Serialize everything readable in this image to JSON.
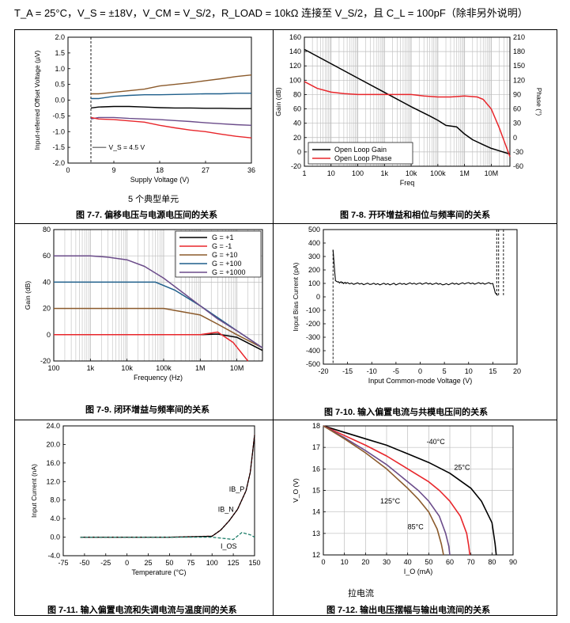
{
  "conditions": "T_A = 25°C，V_S = ±18V，V_CM = V_S/2，R_LOAD = 10kΩ 连接至 V_S/2，且 C_L = 100pF（除非另外说明）",
  "fig77": {
    "caption": "图 7-7. 偏移电压与电源电压间的关系",
    "subnote": "5 个典型单元",
    "chart_data": {
      "type": "line",
      "xlabel": "Supply Voltage (V)",
      "ylabel": "Input-referred Offset Voltage (µV)",
      "xlim": [
        0,
        36
      ],
      "ylim": [
        -2.0,
        2.0
      ],
      "xticks": [
        "0",
        "9",
        "18",
        "27",
        "36"
      ],
      "yticks": [
        "2.0",
        "1.5",
        "1.0",
        "0.5",
        "0.0",
        "-0.5",
        "-1.0",
        "-1.5",
        "-2.0"
      ],
      "annotation": "V_S = 4.5 V",
      "x": [
        4.5,
        6,
        9,
        12,
        15,
        18,
        21,
        24,
        27,
        30,
        33,
        36
      ],
      "series": [
        {
          "color": "#8B5A2B",
          "values": [
            0.2,
            0.2,
            0.25,
            0.3,
            0.35,
            0.45,
            0.5,
            0.55,
            0.62,
            0.68,
            0.75,
            0.8
          ]
        },
        {
          "color": "#1F5F8B",
          "values": [
            0.05,
            0.05,
            0.12,
            0.15,
            0.17,
            0.17,
            0.18,
            0.19,
            0.2,
            0.2,
            0.22,
            0.22
          ]
        },
        {
          "color": "#000000",
          "values": [
            -0.25,
            -0.22,
            -0.2,
            -0.2,
            -0.22,
            -0.24,
            -0.25,
            -0.25,
            -0.26,
            -0.26,
            -0.27,
            -0.27
          ]
        },
        {
          "color": "#6B4C8A",
          "values": [
            -0.6,
            -0.55,
            -0.55,
            -0.58,
            -0.6,
            -0.62,
            -0.65,
            -0.68,
            -0.72,
            -0.75,
            -0.78,
            -0.8
          ]
        },
        {
          "color": "#E8262B",
          "values": [
            -0.55,
            -0.6,
            -0.62,
            -0.66,
            -0.7,
            -0.8,
            -0.88,
            -0.95,
            -1.0,
            -1.08,
            -1.15,
            -1.2
          ]
        }
      ]
    }
  },
  "fig78": {
    "caption": "图 7-8. 开环增益和相位与频率间的关系",
    "chart_data": {
      "type": "line",
      "xlabel": "Freq",
      "ylabel": "Gain (dB)",
      "ylabel2": "Phase (°)",
      "xlim": [
        1,
        50000000
      ],
      "xscale": "log",
      "ylim": [
        -20,
        160
      ],
      "y2lim": [
        -60,
        210
      ],
      "xticks": [
        "1",
        "10",
        "100",
        "1k",
        "10k",
        "100k",
        "1M",
        "10M"
      ],
      "yticks": [
        "160",
        "140",
        "120",
        "100",
        "80",
        "60",
        "40",
        "20",
        "0",
        "-20"
      ],
      "y2ticks": [
        "210",
        "180",
        "150",
        "120",
        "90",
        "60",
        "30",
        "0",
        "-30",
        "-60"
      ],
      "legend": [
        "Open Loop Gain",
        "Open Loop Phase"
      ],
      "legend_position": "bottom-left",
      "series": [
        {
          "name": "Open Loop Gain",
          "color": "#000000",
          "x": [
            1,
            10,
            100,
            1000,
            10000,
            50000,
            100000,
            200000,
            500000,
            1000000,
            2000000,
            5000000,
            10000000,
            50000000
          ],
          "y": [
            143,
            123,
            103,
            83,
            63,
            50,
            44,
            37,
            35,
            25,
            17,
            10,
            5,
            -3
          ]
        },
        {
          "name": "Open Loop Phase",
          "color": "#E8262B",
          "x": [
            1,
            3,
            10,
            30,
            100,
            1000,
            10000,
            30000,
            100000,
            300000,
            1000000,
            3000000,
            5000000,
            10000000,
            20000000,
            50000000
          ],
          "y": [
            117,
            103,
            95,
            92,
            90,
            90,
            90,
            87,
            85,
            85,
            87,
            85,
            80,
            60,
            20,
            -40
          ]
        }
      ]
    }
  },
  "fig79": {
    "caption": "图 7-9. 闭环增益与频率间的关系",
    "chart_data": {
      "type": "line",
      "xlabel": "Frequency (Hz)",
      "ylabel": "Gain (dB)",
      "xlim": [
        100,
        50000000
      ],
      "xscale": "log",
      "ylim": [
        -20,
        80
      ],
      "xticks": [
        "100",
        "1k",
        "10k",
        "100k",
        "1M",
        "10M"
      ],
      "yticks": [
        "80",
        "60",
        "40",
        "20",
        "0",
        "-20"
      ],
      "legend": [
        "G = +1",
        "G = -1",
        "G = +10",
        "G = +100",
        "G = +1000"
      ],
      "legend_position": "top-right",
      "series": [
        {
          "name": "G = +1",
          "color": "#000000",
          "x": [
            100,
            100000,
            1000000,
            3000000,
            10000000,
            50000000
          ],
          "y": [
            0,
            0,
            0,
            0.5,
            -2,
            -12
          ]
        },
        {
          "name": "G = -1",
          "color": "#E8262B",
          "x": [
            100,
            100000,
            1000000,
            3000000,
            8000000,
            20000000
          ],
          "y": [
            0,
            0,
            0,
            2,
            -6,
            -20
          ]
        },
        {
          "name": "G = +10",
          "color": "#8B5A2B",
          "x": [
            100,
            10000,
            100000,
            1000000,
            3000000,
            10000000,
            50000000
          ],
          "y": [
            20,
            20,
            20,
            15,
            8,
            0,
            -10
          ]
        },
        {
          "name": "G = +100",
          "color": "#1F5F8B",
          "x": [
            100,
            10000,
            60000,
            200000,
            1000000,
            3000000,
            10000000,
            50000000
          ],
          "y": [
            40,
            40,
            40,
            34,
            22,
            13,
            3,
            -10
          ]
        },
        {
          "name": "G = +1000",
          "color": "#6B4C8A",
          "x": [
            100,
            1000,
            3000,
            10000,
            30000,
            100000,
            300000,
            1000000,
            3000000,
            10000000,
            50000000
          ],
          "y": [
            60,
            60,
            59,
            57,
            52,
            43,
            33,
            22,
            12,
            3,
            -10
          ]
        }
      ]
    }
  },
  "fig710": {
    "caption": "图 7-10. 输入偏置电流与共模电压间的关系",
    "chart_data": {
      "type": "line",
      "xlabel": "Input Common-mode Voltage (V)",
      "ylabel": "Input Bias Current (pA)",
      "xlim": [
        -20,
        20
      ],
      "ylim": [
        -500,
        500
      ],
      "xticks": [
        "-20",
        "-15",
        "-10",
        "-5",
        "0",
        "5",
        "10",
        "15",
        "20"
      ],
      "yticks": [
        "500",
        "400",
        "300",
        "200",
        "100",
        "0",
        "-100",
        "-200",
        "-300",
        "-400",
        "-500"
      ],
      "series": [
        {
          "color": "#000000",
          "x": [
            -18,
            -17.5,
            -17,
            -15,
            -10,
            -5,
            0,
            5,
            10,
            15,
            15.5,
            16
          ],
          "y": [
            350,
            120,
            110,
            100,
            95,
            95,
            100,
            95,
            100,
            100,
            30,
            10
          ]
        }
      ]
    }
  },
  "fig711": {
    "caption": "图 7-11. 输入偏置电流和失调电流与温度间的关系",
    "chart_data": {
      "type": "line",
      "xlabel": "Temperature (°C)",
      "ylabel": "Input Current (nA)",
      "xlim": [
        -75,
        150
      ],
      "ylim": [
        -4,
        24
      ],
      "xticks": [
        "-75",
        "-50",
        "-25",
        "0",
        "25",
        "50",
        "75",
        "100",
        "125",
        "150"
      ],
      "yticks": [
        "24.0",
        "20.0",
        "16.0",
        "12.0",
        "8.0",
        "4.0",
        "0.0",
        "-4.0"
      ],
      "labels": [
        "IB_P",
        "IB_N",
        "I_OS"
      ],
      "series": [
        {
          "name": "IB_P",
          "color": "#E8262B",
          "x": [
            -55,
            0,
            50,
            100,
            110,
            120,
            130,
            140,
            145,
            150
          ],
          "y": [
            0,
            0,
            0,
            0.2,
            1.5,
            3.5,
            6,
            10,
            14,
            22
          ]
        },
        {
          "name": "IB_N",
          "color": "#000000",
          "x": [
            -55,
            0,
            50,
            100,
            110,
            120,
            130,
            140,
            145,
            150
          ],
          "y": [
            0,
            0,
            0,
            0.2,
            1.5,
            3.5,
            6,
            10,
            14,
            22
          ]
        },
        {
          "name": "I_OS",
          "color": "#1F7F6B",
          "x": [
            -55,
            0,
            50,
            100,
            115,
            125,
            135,
            145,
            150
          ],
          "y": [
            0,
            0,
            0,
            0,
            -0.3,
            -0.5,
            1,
            0.5,
            0
          ]
        }
      ]
    }
  },
  "fig712": {
    "caption": "图 7-12. 输出电压摆幅与输出电流间的关系",
    "subnote": "拉电流",
    "chart_data": {
      "type": "line",
      "xlabel": "I_O (mA)",
      "ylabel": "V_O (V)",
      "xlim": [
        0,
        90
      ],
      "ylim": [
        12,
        18
      ],
      "xticks": [
        "0",
        "10",
        "20",
        "30",
        "40",
        "50",
        "60",
        "70",
        "80",
        "90"
      ],
      "yticks": [
        "18",
        "17",
        "16",
        "15",
        "14",
        "13",
        "12"
      ],
      "labels": [
        "-40°C",
        "25°C",
        "125°C",
        "85°C"
      ],
      "series": [
        {
          "name": "-40°C",
          "color": "#000000",
          "x": [
            0,
            10,
            20,
            30,
            40,
            50,
            60,
            70,
            75,
            80,
            81.5,
            82
          ],
          "y": [
            18,
            17.7,
            17.4,
            17.1,
            16.7,
            16.3,
            15.8,
            15.1,
            14.5,
            13.5,
            12.5,
            12
          ]
        },
        {
          "name": "25°C",
          "color": "#E8262B",
          "x": [
            0,
            10,
            20,
            30,
            40,
            50,
            55,
            60,
            65,
            68,
            69,
            69.5
          ],
          "y": [
            18,
            17.55,
            17.1,
            16.6,
            16.0,
            15.4,
            15.0,
            14.5,
            13.8,
            13,
            12.4,
            12
          ]
        },
        {
          "name": "85°C",
          "color": "#6B4C8A",
          "x": [
            0,
            10,
            20,
            30,
            40,
            45,
            50,
            55,
            58,
            59.5,
            60
          ],
          "y": [
            18,
            17.45,
            16.85,
            16.2,
            15.4,
            15.0,
            14.5,
            13.8,
            13,
            12.4,
            12
          ]
        },
        {
          "name": "125°C",
          "color": "#8B5A2B",
          "x": [
            0,
            10,
            20,
            30,
            40,
            45,
            50,
            54,
            56,
            57
          ],
          "y": [
            18,
            17.4,
            16.75,
            16.0,
            15.1,
            14.6,
            14.0,
            13.2,
            12.5,
            12
          ]
        }
      ]
    }
  }
}
